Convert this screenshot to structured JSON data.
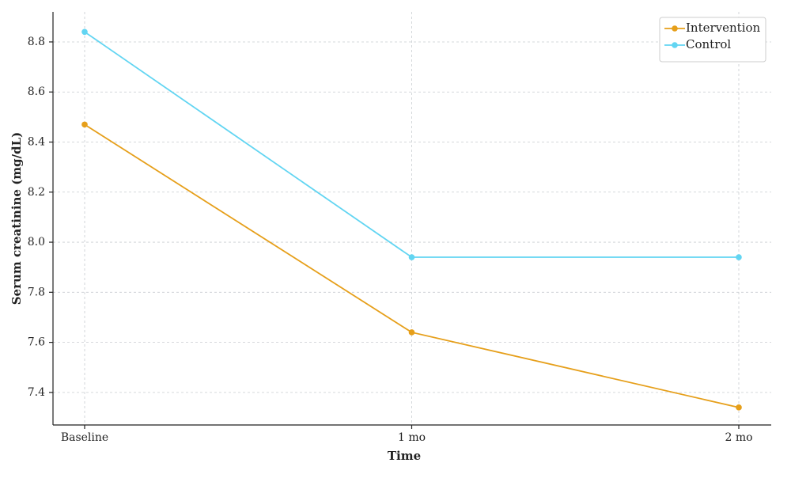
{
  "chart_data": {
    "type": "line",
    "xlabel": "Time",
    "ylabel": "Serum creatinine (mg/dL)",
    "categories": [
      "Baseline",
      "1 mo",
      "2 mo"
    ],
    "series": [
      {
        "name": "Intervention",
        "color": "#e69f1a",
        "values": [
          8.47,
          7.64,
          7.34
        ]
      },
      {
        "name": "Control",
        "color": "#62d5f2",
        "values": [
          8.84,
          7.94,
          7.94
        ]
      }
    ],
    "ylim": [
      7.27,
      8.92
    ],
    "yticks": [
      7.4,
      7.6,
      7.8,
      {
        "value": 8,
        "label": "8.0"
      },
      8.2,
      8.4,
      8.6,
      8.8
    ],
    "grid": true,
    "legend": "upper right"
  }
}
